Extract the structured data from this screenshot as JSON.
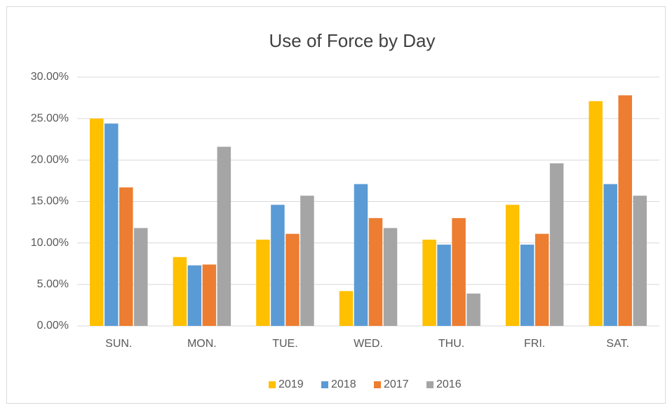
{
  "chart_data": {
    "type": "bar",
    "title": "Use of Force by Day",
    "categories": [
      "SUN.",
      "MON.",
      "TUE.",
      "WED.",
      "THU.",
      "FRI.",
      "SAT."
    ],
    "series": [
      {
        "name": "2019",
        "color": "#FFC000",
        "values": [
          25.0,
          8.3,
          10.4,
          4.2,
          10.4,
          14.6,
          27.1
        ]
      },
      {
        "name": "2018",
        "color": "#5B9BD5",
        "values": [
          24.4,
          7.3,
          14.6,
          17.1,
          9.8,
          9.8,
          17.1
        ]
      },
      {
        "name": "2017",
        "color": "#ED7D31",
        "values": [
          16.7,
          7.4,
          11.1,
          13.0,
          13.0,
          11.1,
          27.8
        ]
      },
      {
        "name": "2016",
        "color": "#A5A5A5",
        "values": [
          11.8,
          21.6,
          15.7,
          11.8,
          3.9,
          19.6,
          15.7
        ]
      }
    ],
    "ylim": [
      0,
      30
    ],
    "yticks": [
      {
        "value": 0,
        "label": "0.00%"
      },
      {
        "value": 5,
        "label": "5.00%"
      },
      {
        "value": 10,
        "label": "10.00%"
      },
      {
        "value": 15,
        "label": "15.00%"
      },
      {
        "value": 20,
        "label": "20.00%"
      },
      {
        "value": 25,
        "label": "25.00%"
      },
      {
        "value": 30,
        "label": "30.00%"
      }
    ],
    "grid": true,
    "legend": "bottom"
  }
}
